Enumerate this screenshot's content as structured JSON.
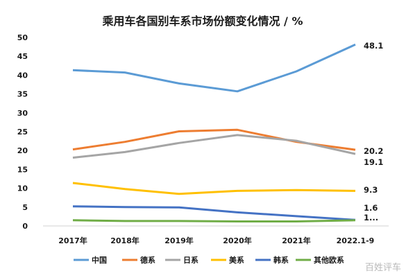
{
  "chart_data": {
    "type": "line",
    "title": "乘用车各国别车系市场份额变化情况 / %",
    "categories": [
      "2017年",
      "2018年",
      "2019年",
      "2020年",
      "2021年",
      "2022.1-9"
    ],
    "ylim": [
      0,
      50
    ],
    "yticks": [
      "0",
      "5",
      "10",
      "15",
      "20",
      "25",
      "30",
      "35",
      "40",
      "45",
      "50"
    ],
    "grid": false,
    "legend_position": "bottom",
    "series": [
      {
        "name": "中国",
        "color": "#5b9bd5",
        "values": [
          41.3,
          40.7,
          37.8,
          35.7,
          41.0,
          48.1
        ]
      },
      {
        "name": "德系",
        "color": "#ed7d31",
        "values": [
          20.3,
          22.3,
          25.1,
          25.5,
          22.3,
          20.2
        ]
      },
      {
        "name": "日系",
        "color": "#a5a5a5",
        "values": [
          18.1,
          19.6,
          22.0,
          24.1,
          22.6,
          19.1
        ]
      },
      {
        "name": "美系",
        "color": "#ffc000",
        "values": [
          11.4,
          9.8,
          8.5,
          9.3,
          9.5,
          9.3
        ]
      },
      {
        "name": "韩系",
        "color": "#4472c4",
        "values": [
          5.2,
          5.0,
          4.9,
          3.6,
          2.6,
          1.6
        ]
      },
      {
        "name": "其他欧系",
        "color": "#70ad47",
        "values": [
          1.5,
          1.3,
          1.3,
          1.2,
          1.2,
          1.5
        ]
      }
    ],
    "end_labels": [
      "48.1",
      "20.2",
      "19.1",
      "9.3",
      "1.6",
      "1..."
    ]
  },
  "watermark": "百姓评车"
}
